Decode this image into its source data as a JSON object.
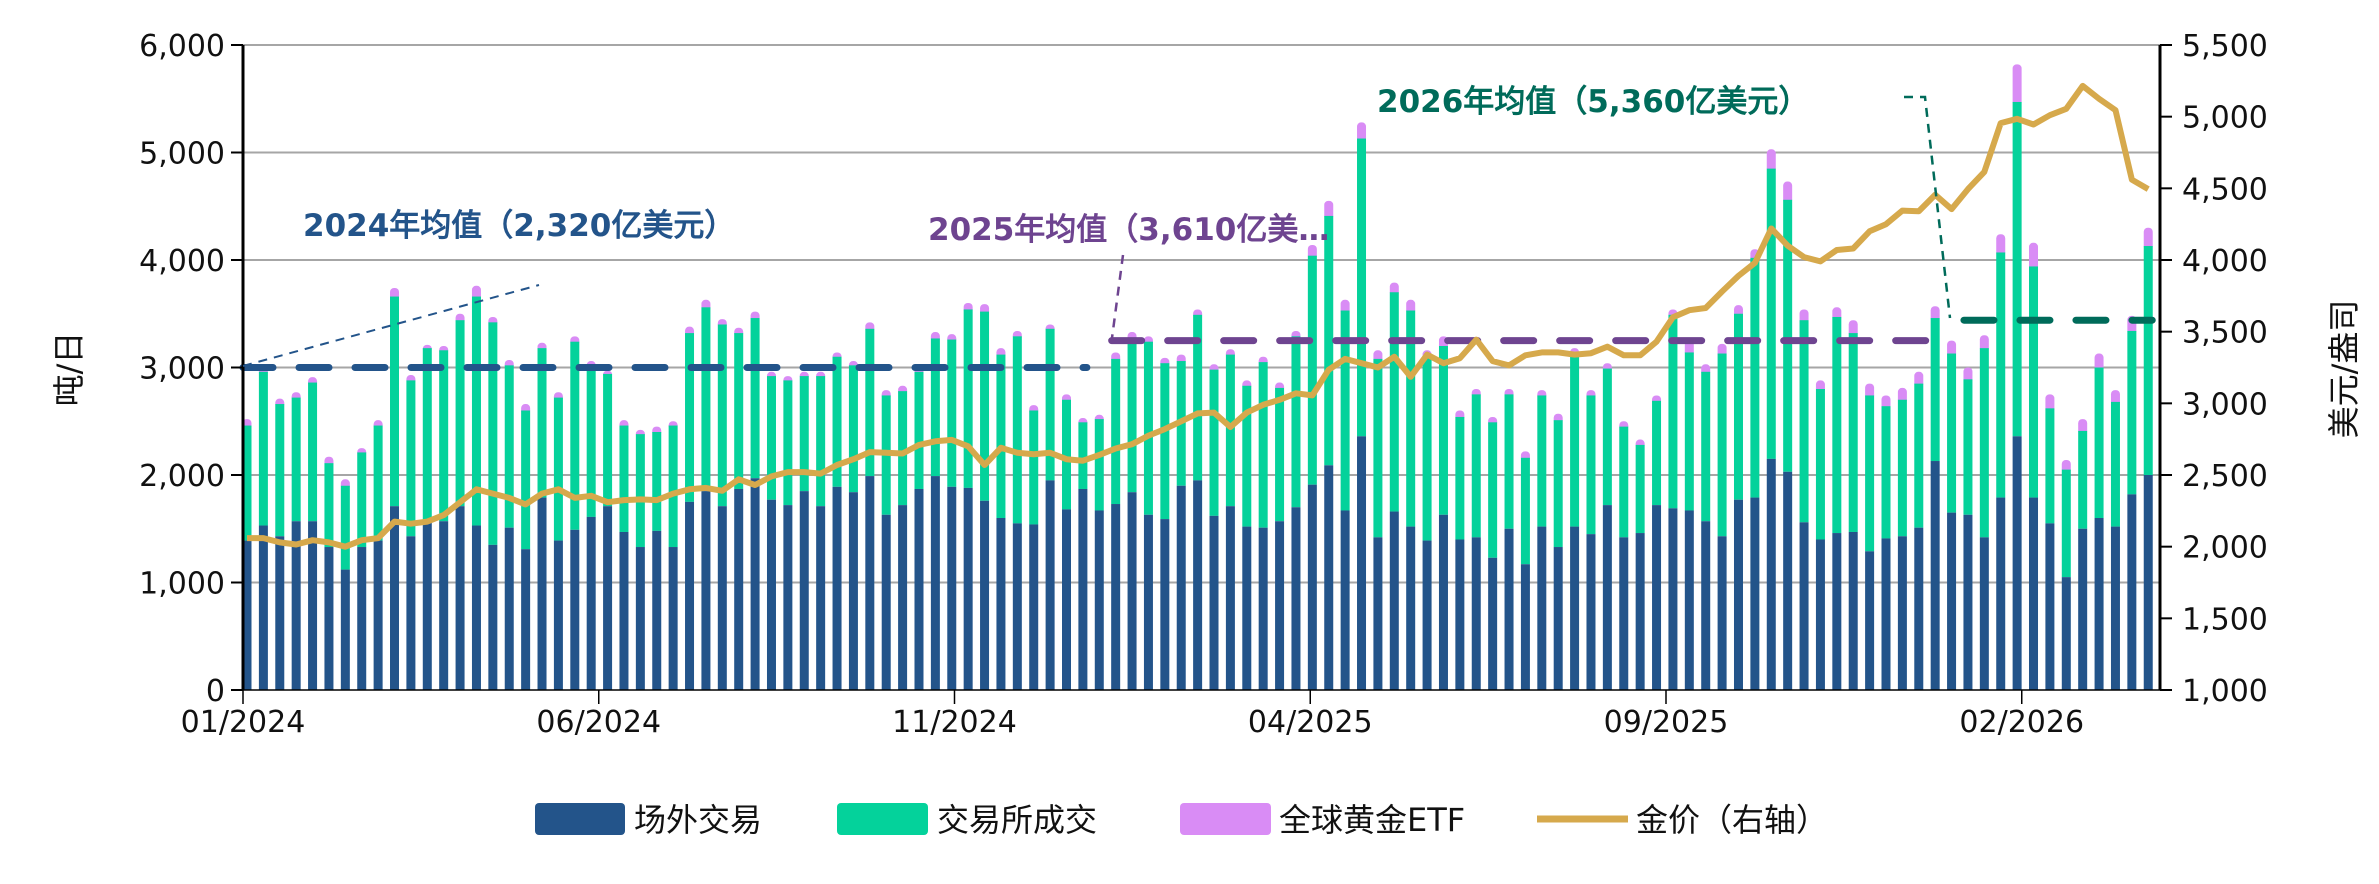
{
  "chart_data": {
    "type": "bar",
    "stacked": true,
    "frequency": "weekly",
    "title": "",
    "ylabel": "吨/日",
    "y2label": "美元/盎司",
    "ylim": [
      0,
      6000
    ],
    "y2lim": [
      1000,
      5500
    ],
    "yticks": [
      "0",
      "1,000",
      "2,000",
      "3,000",
      "4,000",
      "5,000",
      "6,000"
    ],
    "y2ticks": [
      "1,000",
      "1,500",
      "2,000",
      "2,500",
      "3,000",
      "3,500",
      "4,000",
      "4,500",
      "5,000",
      "5,500"
    ],
    "xticks": [
      "01/2024",
      "06/2024",
      "11/2024",
      "04/2025",
      "09/2025",
      "02/2026"
    ],
    "grid": true,
    "legend_position": "bottom",
    "colors": {
      "otc": "#23548a",
      "exchange": "#04d29b",
      "etf": "#d98cf5",
      "gold": "#d6a94c",
      "avg2024": "#23548a",
      "avg2025": "#6e4490",
      "avg2026": "#006b5a"
    },
    "series": [
      {
        "name": "场外交易",
        "type": "bar",
        "axis": "left",
        "values": [
          1390,
          1530,
          1430,
          1570,
          1570,
          1330,
          1120,
          1330,
          1390,
          1710,
          1430,
          1570,
          1570,
          1710,
          1530,
          1350,
          1510,
          1310,
          1790,
          1390,
          1490,
          1610,
          1710,
          1470,
          1330,
          1480,
          1330,
          1750,
          1850,
          1710,
          1870,
          1970,
          1770,
          1720,
          1850,
          1710,
          1890,
          1840,
          1990,
          1630,
          1720,
          1870,
          1990,
          1890,
          1880,
          1760,
          1600,
          1550,
          1540,
          1950,
          1680,
          1870,
          1670,
          1730,
          1840,
          1630,
          1590,
          1900,
          1950,
          1620,
          1710,
          1520,
          1510,
          1570,
          1700,
          1910,
          2090,
          1670,
          2360,
          1420,
          1660,
          1520,
          1390,
          1630,
          1400,
          1420,
          1230,
          1500,
          1170,
          1520,
          1330,
          1520,
          1450,
          1720,
          1420,
          1460,
          1720,
          1690,
          1670,
          1570,
          1430,
          1770,
          1790,
          2150,
          2030,
          1560,
          1400,
          1460,
          1470,
          1290,
          1410,
          1430,
          1510,
          2130,
          1650,
          1630,
          1420,
          1790,
          2360,
          1790,
          1550,
          1050,
          1500,
          1600,
          1520,
          1820,
          2000
        ]
      },
      {
        "name": "交易所成交",
        "type": "bar",
        "axis": "left",
        "values": [
          1070,
          1430,
          1230,
          1150,
          1290,
          780,
          780,
          880,
          1070,
          1950,
          1450,
          1610,
          1590,
          1730,
          2130,
          2070,
          1510,
          1290,
          1390,
          1330,
          1750,
          1410,
          1230,
          990,
          1050,
          920,
          1130,
          1570,
          1710,
          1690,
          1450,
          1490,
          1150,
          1160,
          1070,
          1210,
          1210,
          1180,
          1370,
          1110,
          1060,
          1090,
          1280,
          1370,
          1660,
          1760,
          1520,
          1740,
          1060,
          1410,
          1020,
          620,
          850,
          1350,
          1430,
          1610,
          1450,
          1160,
          1540,
          1360,
          1410,
          1310,
          1540,
          1240,
          1590,
          2130,
          2320,
          1860,
          2770,
          1660,
          2040,
          2010,
          1710,
          1570,
          1140,
          1330,
          1260,
          1250,
          990,
          1220,
          1180,
          1620,
          1290,
          1270,
          1030,
          820,
          970,
          1800,
          1470,
          1390,
          1700,
          1730,
          2230,
          2700,
          2530,
          1880,
          1400,
          2010,
          1850,
          1450,
          1230,
          1270,
          1340,
          1330,
          1480,
          1260,
          1760,
          2280,
          3110,
          2150,
          1070,
          1000,
          910,
          1400,
          1160,
          1520,
          2130
        ]
      },
      {
        "name": "全球黄金ETF",
        "type": "bar",
        "axis": "left",
        "values": [
          60,
          40,
          50,
          50,
          50,
          60,
          60,
          40,
          50,
          80,
          50,
          30,
          40,
          60,
          100,
          50,
          50,
          60,
          50,
          50,
          50,
          40,
          30,
          50,
          40,
          50,
          40,
          60,
          70,
          50,
          50,
          60,
          40,
          40,
          40,
          40,
          40,
          40,
          60,
          50,
          50,
          40,
          60,
          50,
          60,
          70,
          60,
          50,
          50,
          40,
          50,
          40,
          40,
          60,
          60,
          50,
          50,
          60,
          50,
          50,
          50,
          50,
          50,
          50,
          50,
          100,
          140,
          100,
          150,
          80,
          90,
          100,
          60,
          90,
          60,
          50,
          50,
          50,
          60,
          50,
          60,
          40,
          50,
          50,
          50,
          50,
          50,
          50,
          110,
          70,
          90,
          80,
          80,
          180,
          170,
          100,
          80,
          90,
          120,
          110,
          100,
          110,
          110,
          110,
          120,
          110,
          120,
          170,
          350,
          220,
          130,
          90,
          110,
          130,
          110,
          140,
          170
        ]
      },
      {
        "name": "金价（右轴）",
        "type": "line",
        "axis": "right",
        "values": [
          2060,
          2060,
          2030,
          2015,
          2045,
          2030,
          2000,
          2045,
          2060,
          2175,
          2160,
          2175,
          2220,
          2310,
          2400,
          2370,
          2340,
          2295,
          2370,
          2400,
          2340,
          2355,
          2310,
          2325,
          2330,
          2325,
          2370,
          2400,
          2410,
          2390,
          2470,
          2430,
          2490,
          2520,
          2520,
          2510,
          2570,
          2610,
          2660,
          2655,
          2650,
          2710,
          2735,
          2745,
          2700,
          2570,
          2690,
          2655,
          2645,
          2655,
          2610,
          2600,
          2640,
          2685,
          2715,
          2775,
          2820,
          2875,
          2930,
          2935,
          2835,
          2935,
          2990,
          3025,
          3070,
          3055,
          3235,
          3310,
          3280,
          3250,
          3325,
          3185,
          3340,
          3280,
          3315,
          3445,
          3295,
          3265,
          3335,
          3355,
          3355,
          3340,
          3350,
          3395,
          3335,
          3335,
          3430,
          3600,
          3650,
          3665,
          3780,
          3890,
          3980,
          4220,
          4100,
          4020,
          3990,
          4070,
          4080,
          4200,
          4250,
          4345,
          4340,
          4455,
          4355,
          4495,
          4615,
          4955,
          4985,
          4945,
          5010,
          5055,
          5215,
          5125,
          5045,
          4560,
          4495
        ]
      }
    ],
    "annotations": [
      {
        "label": "2024年均值（2,320亿美元）",
        "average_tons_per_day": 3000,
        "color": "#23548a"
      },
      {
        "label": "2025年均值（3,610亿美…",
        "average_tons_per_day": 3250,
        "color": "#6e4490"
      },
      {
        "label": "2026年均值（5,360亿美元）",
        "average_tons_per_day": 3440,
        "color": "#006b5a"
      }
    ]
  }
}
